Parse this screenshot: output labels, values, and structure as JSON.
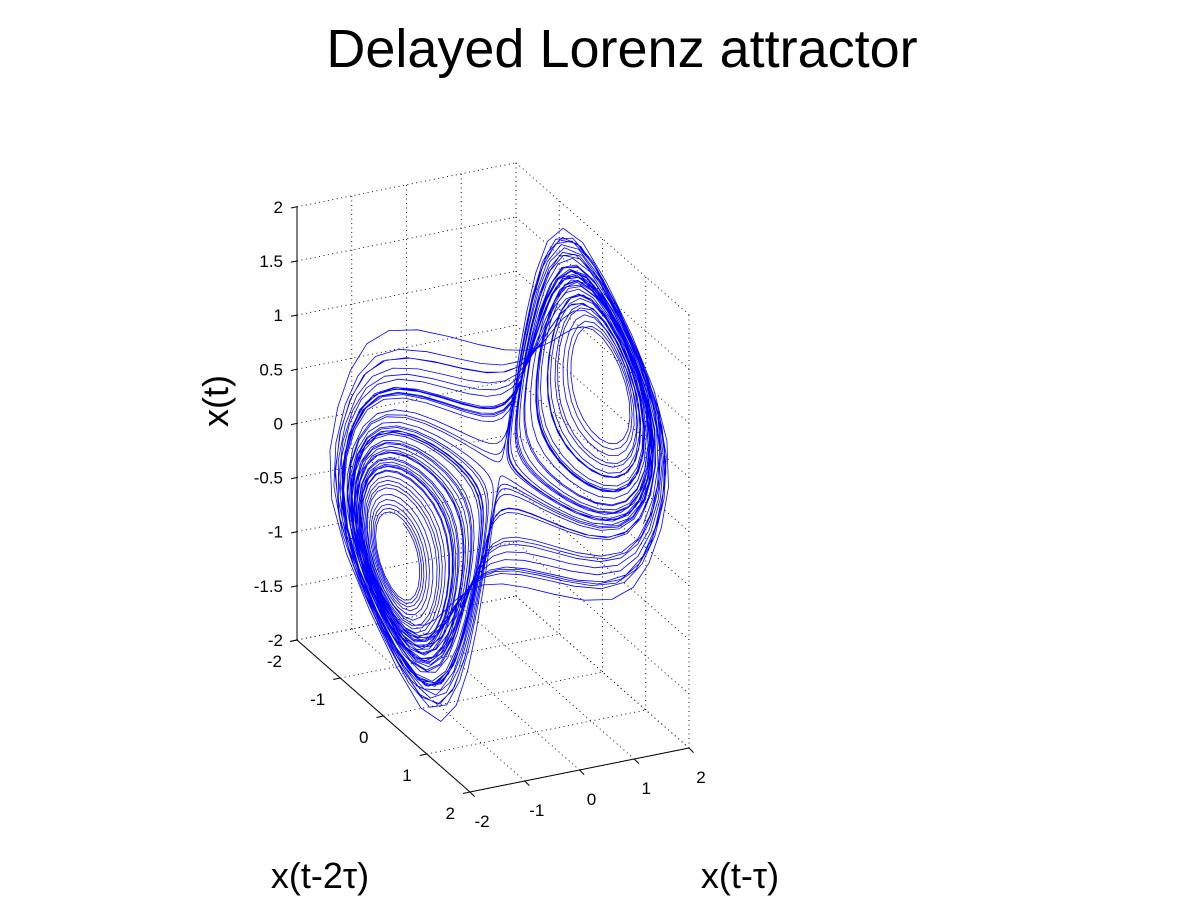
{
  "chart_data": {
    "type": "line",
    "subtype": "3d-line",
    "title": "Delayed Lorenz attractor",
    "xlabel": "x(t-τ)",
    "ylabel": "x(t-2τ)",
    "zlabel": "x(t)",
    "xlim": [
      -2,
      2
    ],
    "ylim": [
      -2,
      2
    ],
    "zlim": [
      -2,
      2
    ],
    "xticks": [
      "-2",
      "-1",
      "0",
      "1",
      "2"
    ],
    "yticks": [
      "-2",
      "-1",
      "0",
      "1",
      "2"
    ],
    "zticks": [
      "-2",
      "-1.5",
      "-1",
      "-0.5",
      "0",
      "0.5",
      "1",
      "1.5",
      "2"
    ],
    "grid": true,
    "legend": "none",
    "series": [
      {
        "embedding": "delay coordinates of a Lorenz x(t) trajectory (normalized), points (x(t-τ), x(t-2τ), x(t))",
        "color": "#0000ff"
      }
    ]
  }
}
